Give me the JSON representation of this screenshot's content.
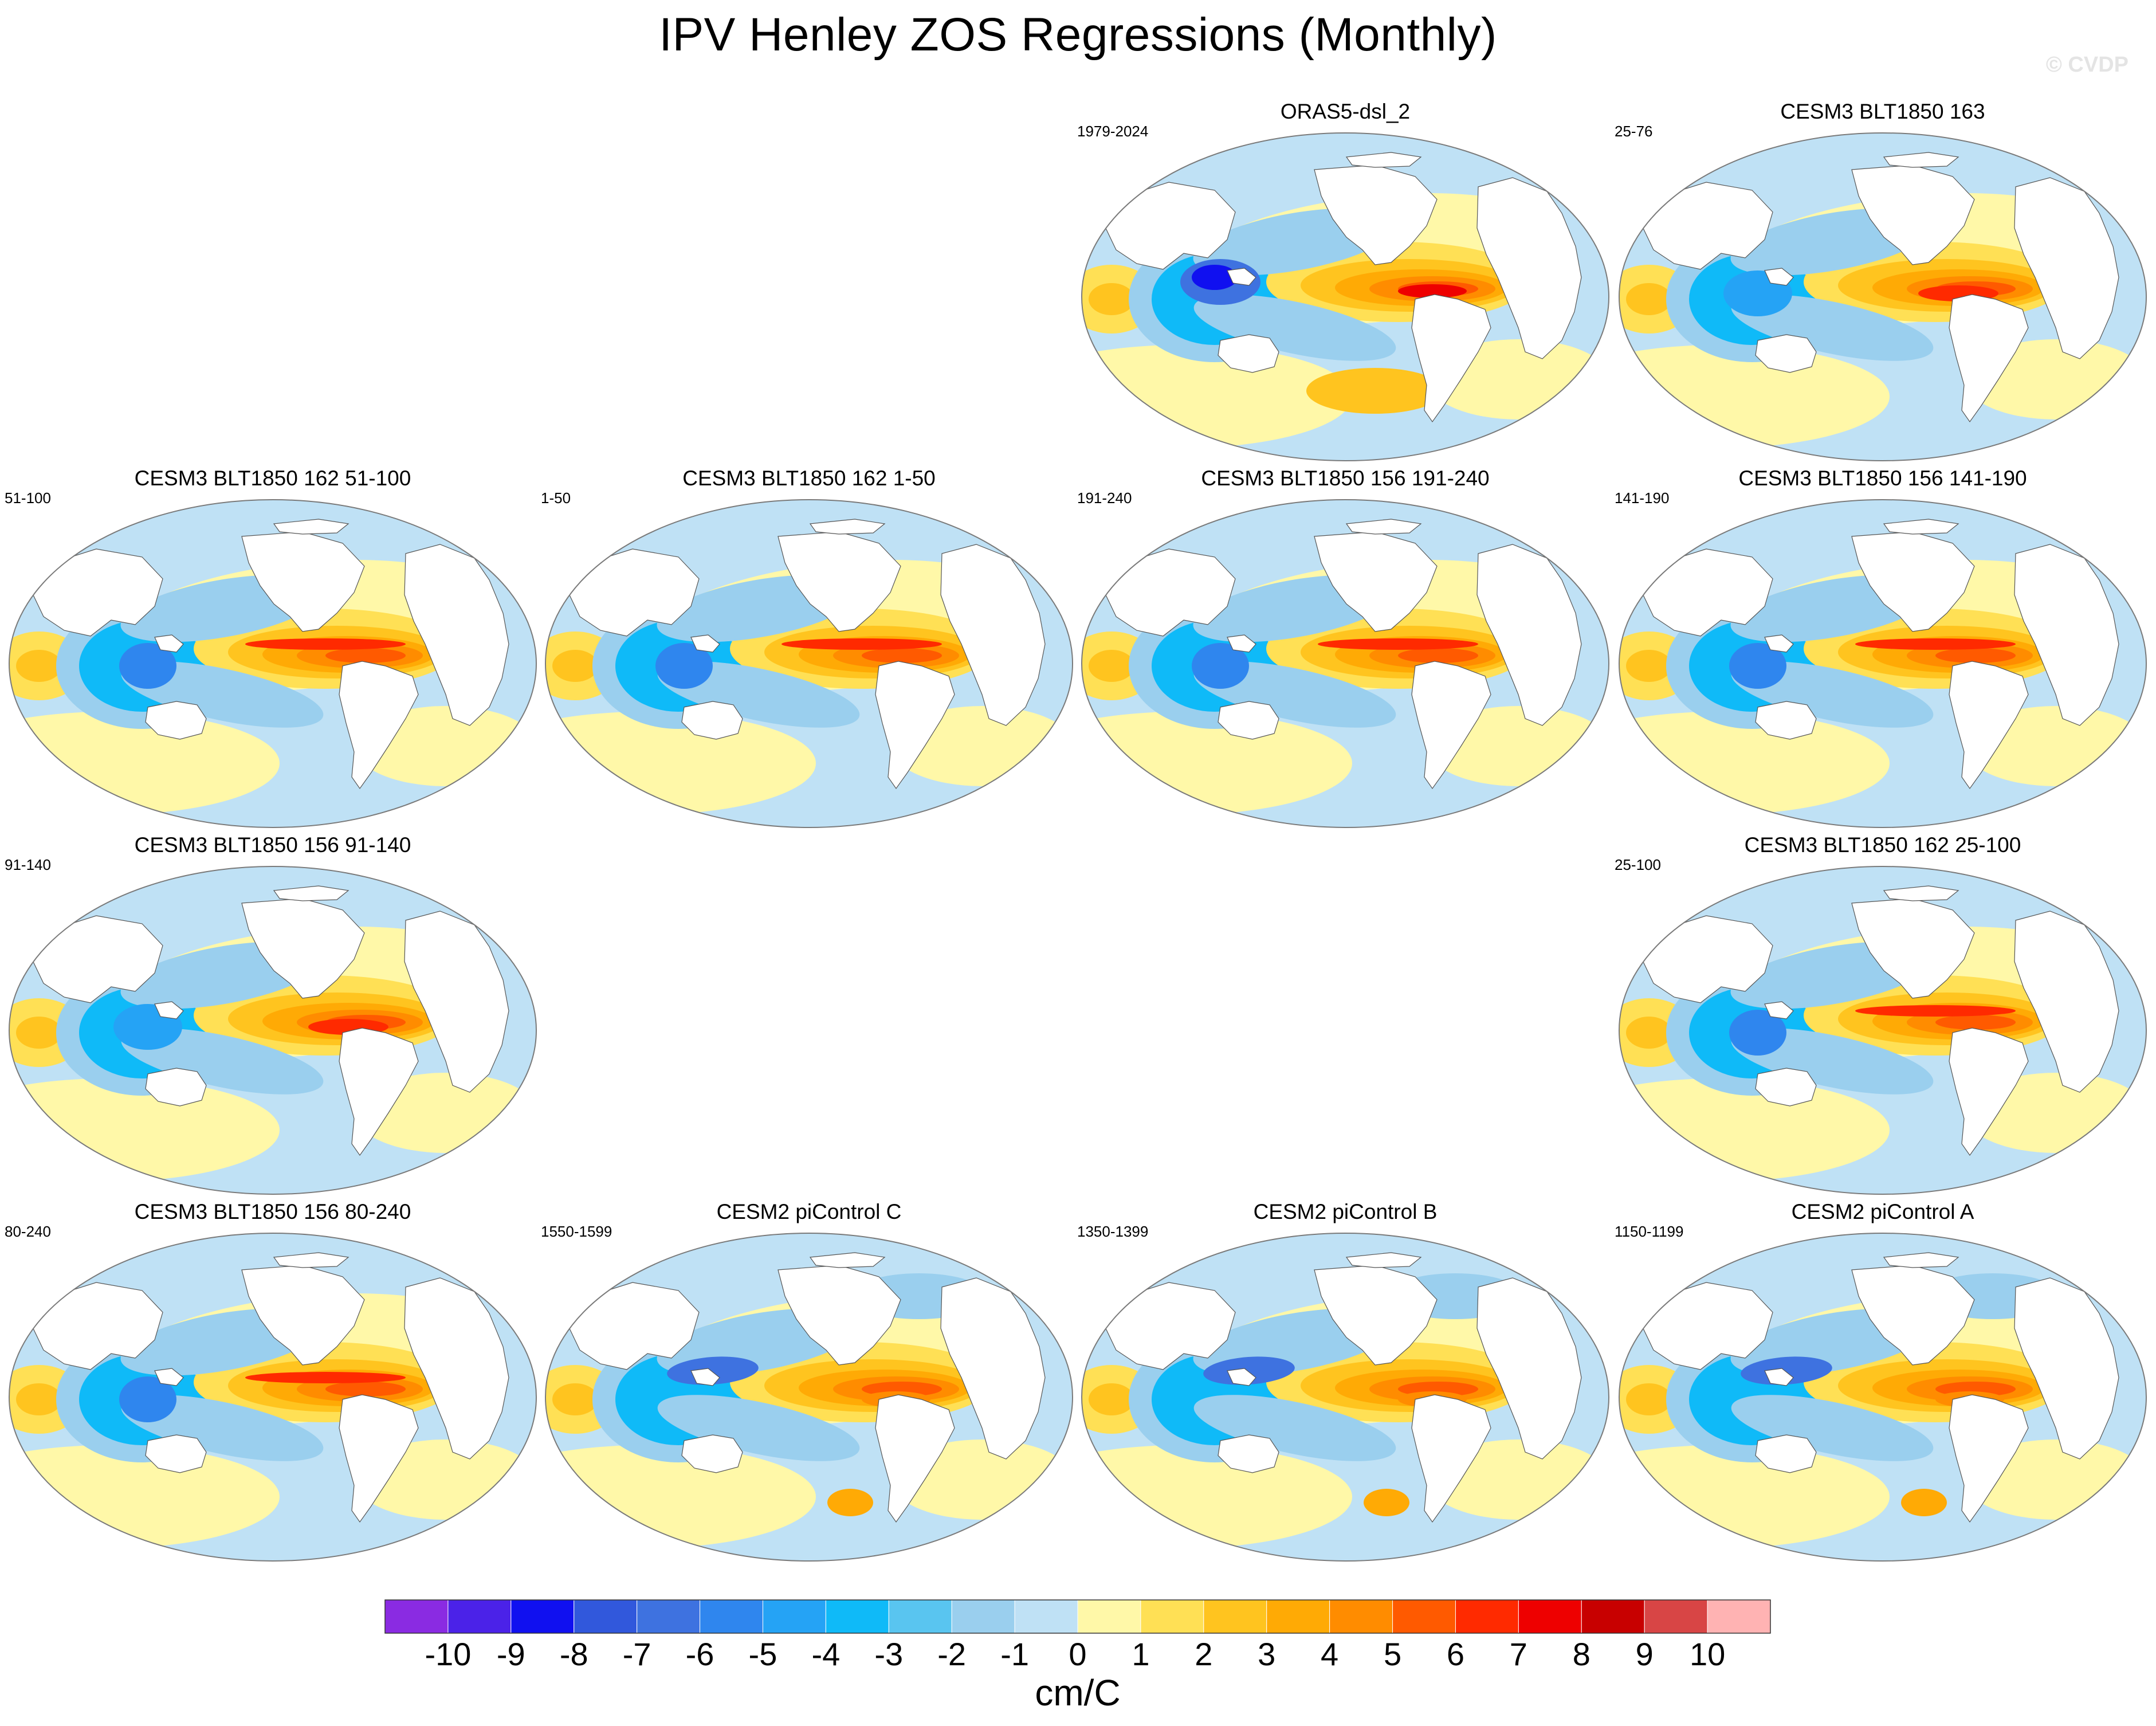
{
  "title": "IPV Henley ZOS Regressions (Monthly)",
  "watermark": "© CVDP",
  "panels": [
    {
      "name": "ORAS5-dsl_2",
      "years": "1979-2024",
      "pattern": "obs"
    },
    {
      "name": "CESM3 BLT1850 163",
      "years": "25-76",
      "pattern": "b"
    },
    {
      "name": "CESM3 BLT1850 162 51-100",
      "years": "51-100",
      "pattern": "a"
    },
    {
      "name": "CESM3 BLT1850 162 1-50",
      "years": "1-50",
      "pattern": "a"
    },
    {
      "name": "CESM3 BLT1850 156 191-240",
      "years": "191-240",
      "pattern": "a"
    },
    {
      "name": "CESM3 BLT1850 156 141-190",
      "years": "141-190",
      "pattern": "a"
    },
    {
      "name": "CESM3 BLT1850 156 91-140",
      "years": "91-140",
      "pattern": "b"
    },
    {
      "name": "CESM3 BLT1850 162 25-100",
      "years": "25-100",
      "pattern": "a"
    },
    {
      "name": "CESM3 BLT1850 156 80-240",
      "years": "80-240",
      "pattern": "a"
    },
    {
      "name": "CESM2 piControl C",
      "years": "1550-1599",
      "pattern": "c"
    },
    {
      "name": "CESM2 piControl B",
      "years": "1350-1399",
      "pattern": "c"
    },
    {
      "name": "CESM2 piControl A",
      "years": "1150-1199",
      "pattern": "c"
    }
  ],
  "chart_data": {
    "type": "heatmap",
    "projection": "robinson",
    "layout": "4x4 panel grid",
    "variable": "ZOS regression onto IPV Henley index",
    "colorbar": {
      "label": "cm/C",
      "levels": [
        -10,
        -9,
        -8,
        -7,
        -6,
        -5,
        -4,
        -3,
        -2,
        -1,
        0,
        1,
        2,
        3,
        4,
        5,
        6,
        7,
        8,
        9,
        10
      ],
      "tick_labels": [
        "-10",
        "-9",
        "-8",
        "-7",
        "-6",
        "-5",
        "-4",
        "-3",
        "-2",
        "-1",
        "0",
        "1",
        "2",
        "3",
        "4",
        "5",
        "6",
        "7",
        "8",
        "9",
        "10"
      ],
      "colors": [
        "#8a2be2",
        "#4b22e8",
        "#1010f0",
        "#3158dc",
        "#3e72e0",
        "#2f86ee",
        "#25a3f5",
        "#0fbaf8",
        "#59c5f0",
        "#9acfee",
        "#bfe1f5",
        "#fff8a8",
        "#ffe055",
        "#ffc41f",
        "#ffaa05",
        "#ff8c00",
        "#ff5a00",
        "#ff2a00",
        "#ee0000",
        "#c80000",
        "#d84545",
        "#ffb3b3"
      ]
    }
  }
}
